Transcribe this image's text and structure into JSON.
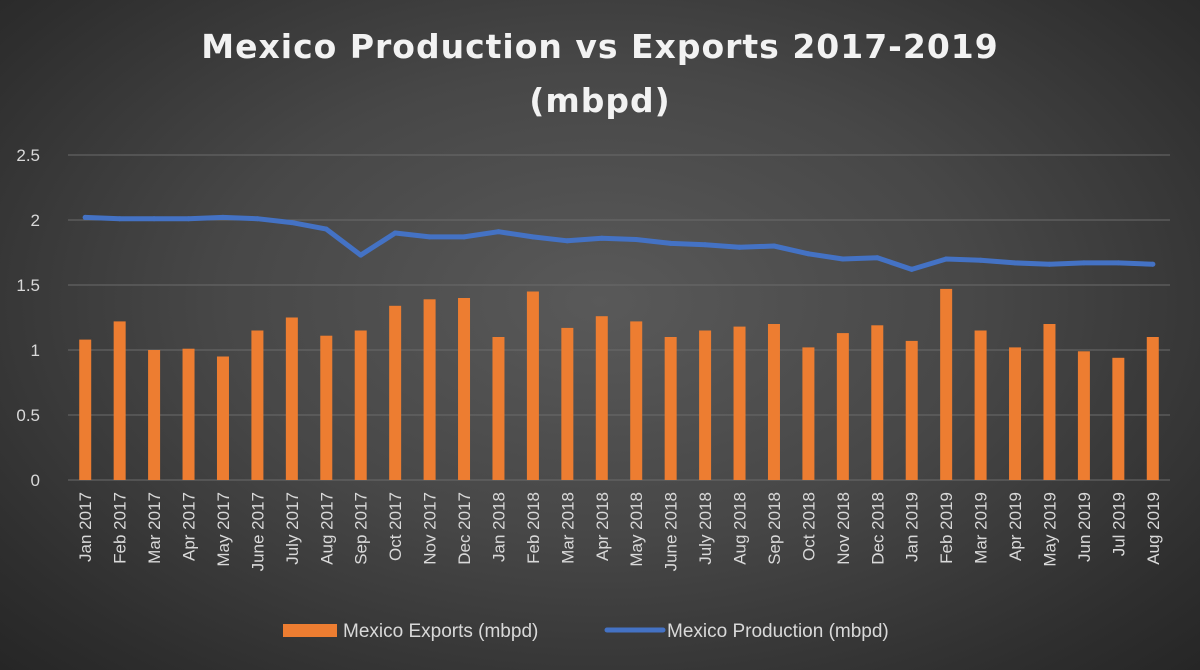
{
  "chart_data": {
    "type": "bar",
    "title_line1": "Mexico Production vs Exports 2017-2019",
    "title_line2": "(mbpd)",
    "categories": [
      "Jan 2017",
      "Feb 2017",
      "Mar 2017",
      "Apr 2017",
      "May 2017",
      "June 2017",
      "July 2017",
      "Aug 2017",
      "Sep 2017",
      "Oct 2017",
      "Nov 2017",
      "Dec 2017",
      "Jan 2018",
      "Feb 2018",
      "Mar 2018",
      "Apr 2018",
      "May 2018",
      "June 2018",
      "July 2018",
      "Aug 2018",
      "Sep 2018",
      "Oct 2018",
      "Nov 2018",
      "Dec 2018",
      "Jan 2019",
      "Feb 2019",
      "Mar 2019",
      "Apr 2019",
      "May 2019",
      "Jun 2019",
      "Jul 2019",
      "Aug 2019"
    ],
    "series": [
      {
        "name": "Mexico Exports (mbpd)",
        "kind": "bar",
        "color": "#ed7d31",
        "values": [
          1.08,
          1.22,
          1.0,
          1.01,
          0.95,
          1.15,
          1.25,
          1.11,
          1.15,
          1.34,
          1.39,
          1.4,
          1.1,
          1.45,
          1.17,
          1.26,
          1.22,
          1.1,
          1.15,
          1.18,
          1.2,
          1.02,
          1.13,
          1.19,
          1.07,
          1.47,
          1.15,
          1.02,
          1.2,
          0.99,
          0.94,
          1.1
        ]
      },
      {
        "name": "Mexico Production (mbpd)",
        "kind": "line",
        "color": "#4472c4",
        "values": [
          2.02,
          2.01,
          2.01,
          2.01,
          2.02,
          2.01,
          1.98,
          1.93,
          1.73,
          1.9,
          1.87,
          1.87,
          1.91,
          1.87,
          1.84,
          1.86,
          1.85,
          1.82,
          1.81,
          1.79,
          1.8,
          1.74,
          1.7,
          1.71,
          1.62,
          1.7,
          1.69,
          1.67,
          1.66,
          1.67,
          1.67,
          1.66
        ]
      }
    ],
    "ylim": [
      0,
      2.5
    ],
    "yticks": [
      "0",
      "0.5",
      "1",
      "1.5",
      "2",
      "2.5"
    ],
    "grid": true,
    "legend": "bottom"
  }
}
